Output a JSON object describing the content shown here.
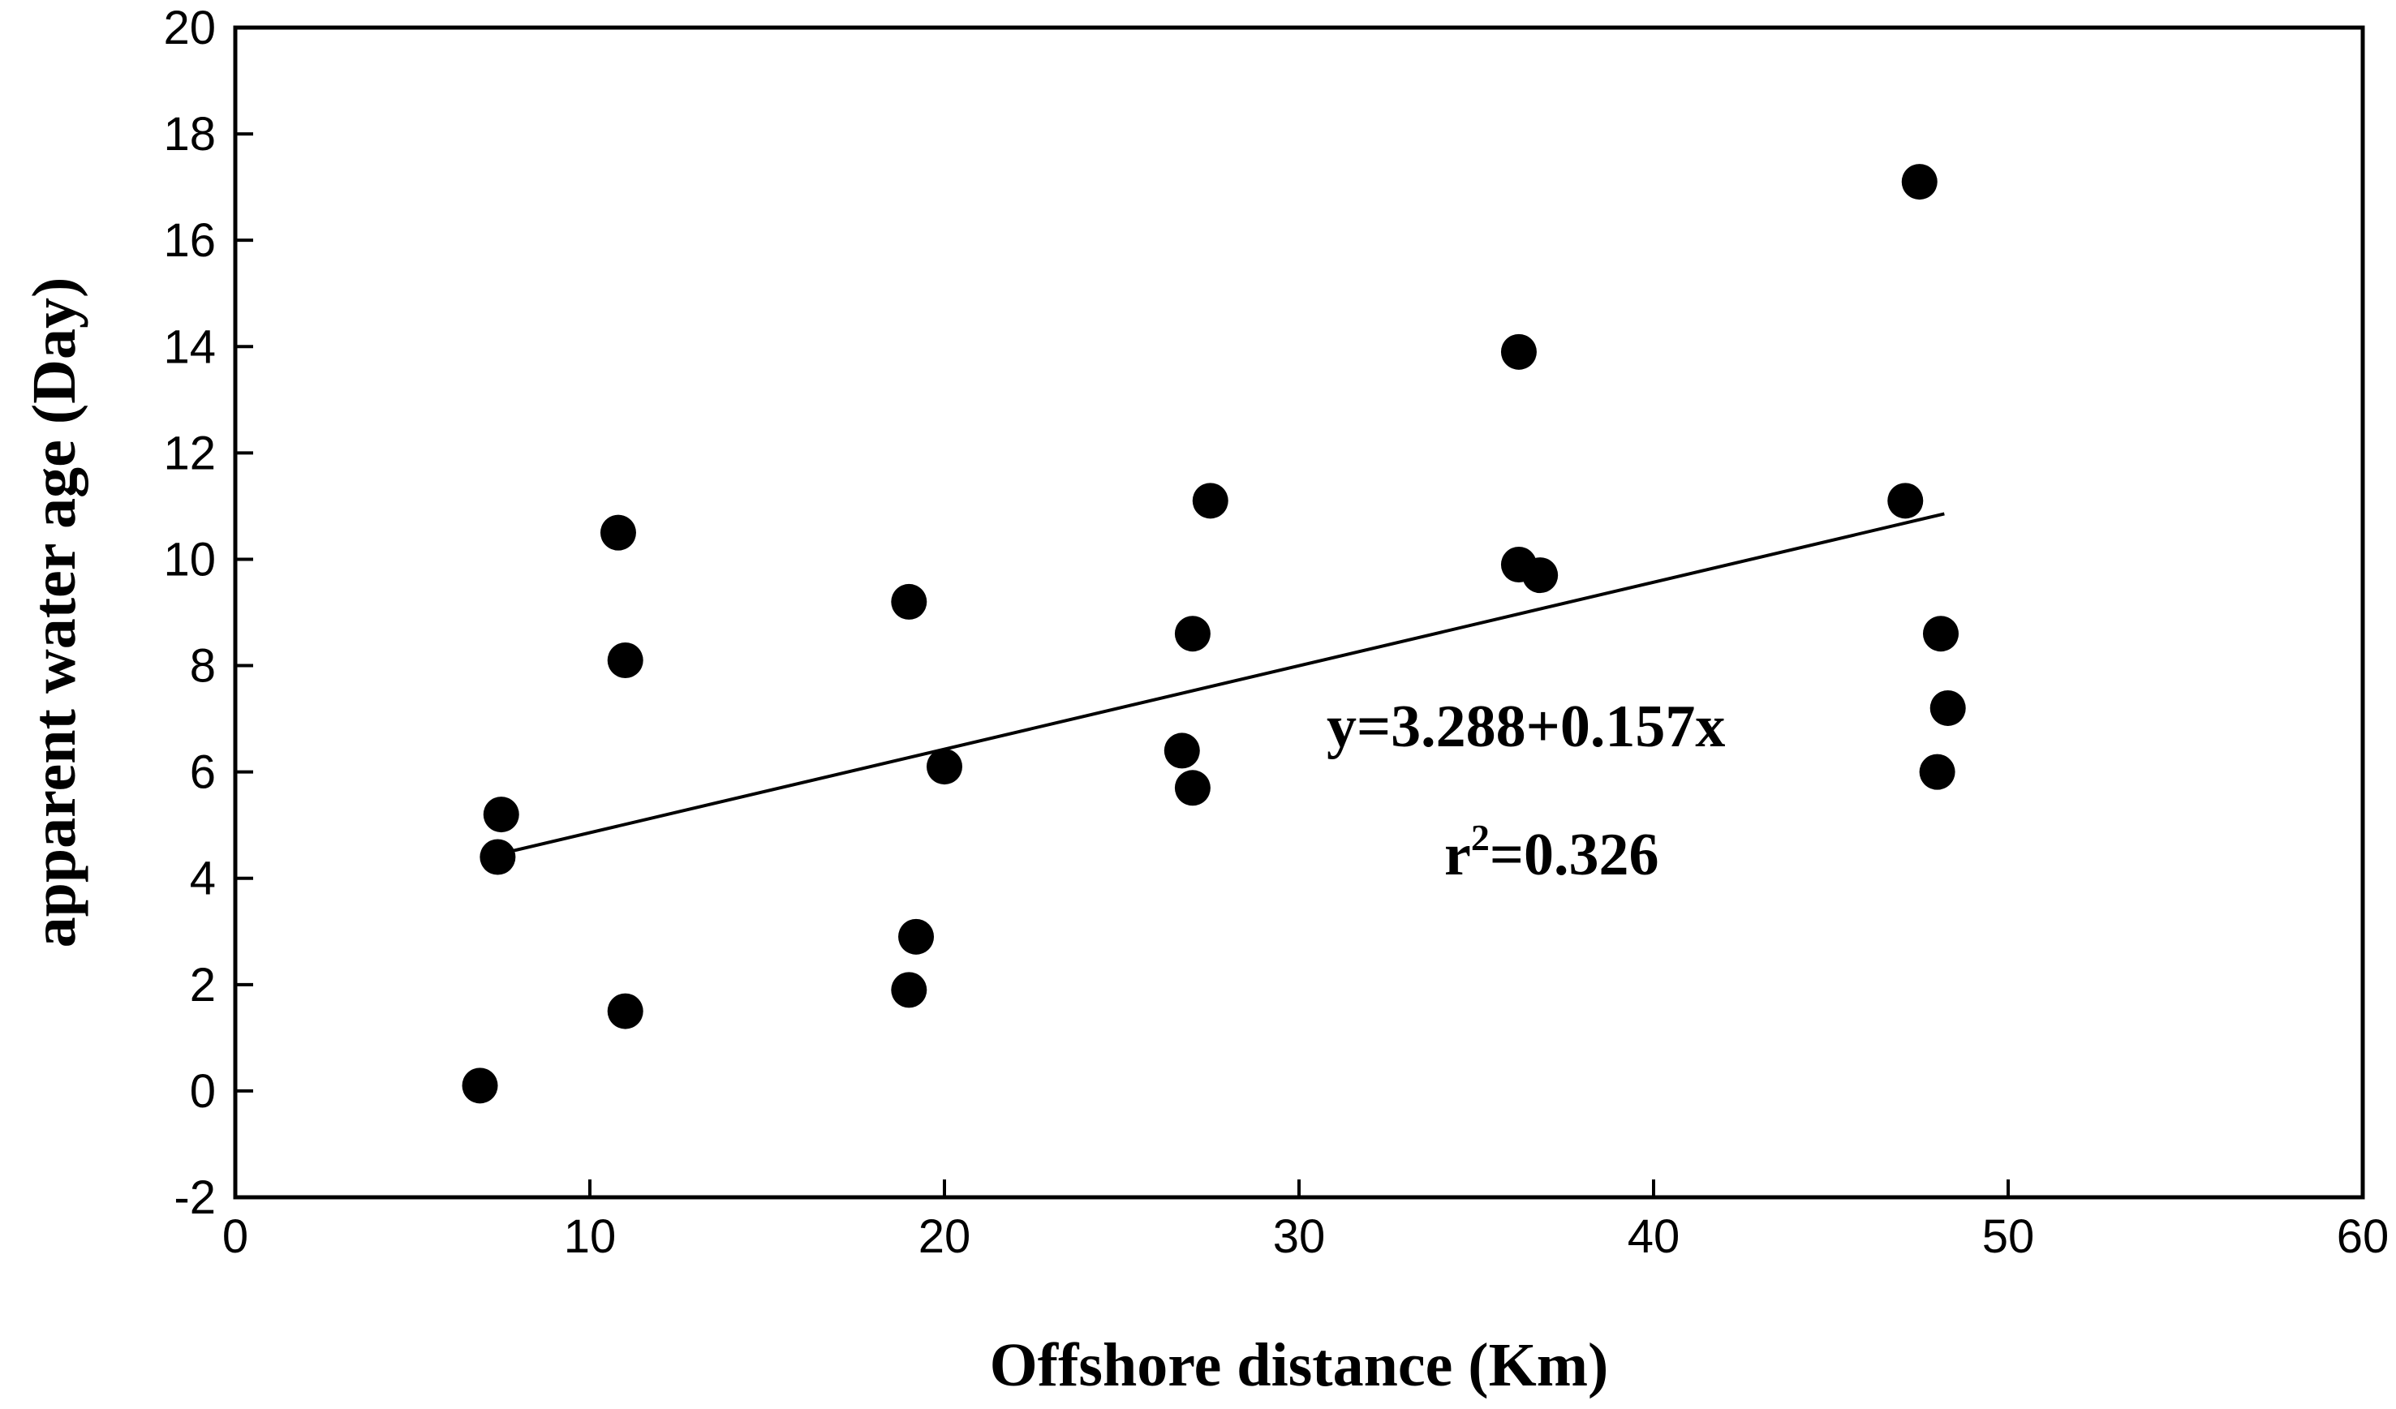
{
  "chart_data": {
    "type": "scatter",
    "title": "",
    "xlabel": "Offshore distance (Km)",
    "ylabel": "apparent water age (Day)",
    "xlim": [
      0,
      60
    ],
    "ylim": [
      -2,
      20
    ],
    "xticks": [
      0,
      10,
      20,
      30,
      40,
      50,
      60
    ],
    "yticks": [
      -2,
      0,
      2,
      4,
      6,
      8,
      10,
      12,
      14,
      16,
      18,
      20
    ],
    "grid": false,
    "legend": false,
    "series": [
      {
        "points": [
          {
            "x": 6.9,
            "y": 0.1
          },
          {
            "x": 7.4,
            "y": 4.4
          },
          {
            "x": 7.5,
            "y": 5.2
          },
          {
            "x": 10.8,
            "y": 10.5
          },
          {
            "x": 11.0,
            "y": 8.1
          },
          {
            "x": 11.0,
            "y": 1.5
          },
          {
            "x": 19.0,
            "y": 9.2
          },
          {
            "x": 19.2,
            "y": 2.9
          },
          {
            "x": 19.0,
            "y": 1.9
          },
          {
            "x": 20.0,
            "y": 6.1
          },
          {
            "x": 26.7,
            "y": 6.4
          },
          {
            "x": 27.0,
            "y": 8.6
          },
          {
            "x": 27.0,
            "y": 5.7
          },
          {
            "x": 27.5,
            "y": 11.1
          },
          {
            "x": 36.2,
            "y": 13.9
          },
          {
            "x": 36.2,
            "y": 9.9
          },
          {
            "x": 36.8,
            "y": 9.7
          },
          {
            "x": 47.1,
            "y": 11.1
          },
          {
            "x": 47.5,
            "y": 17.1
          },
          {
            "x": 48.1,
            "y": 8.6
          },
          {
            "x": 48.3,
            "y": 7.2
          },
          {
            "x": 48.0,
            "y": 6.0
          }
        ]
      }
    ],
    "regression": {
      "intercept": 3.288,
      "slope": 0.157,
      "x_range": [
        7.5,
        48.2
      ]
    },
    "annotations": {
      "equation": "y=3.288+0.157x",
      "r_squared_prefix": "r",
      "r_squared_superscript": "2",
      "r_squared_value": "=0.326"
    }
  }
}
